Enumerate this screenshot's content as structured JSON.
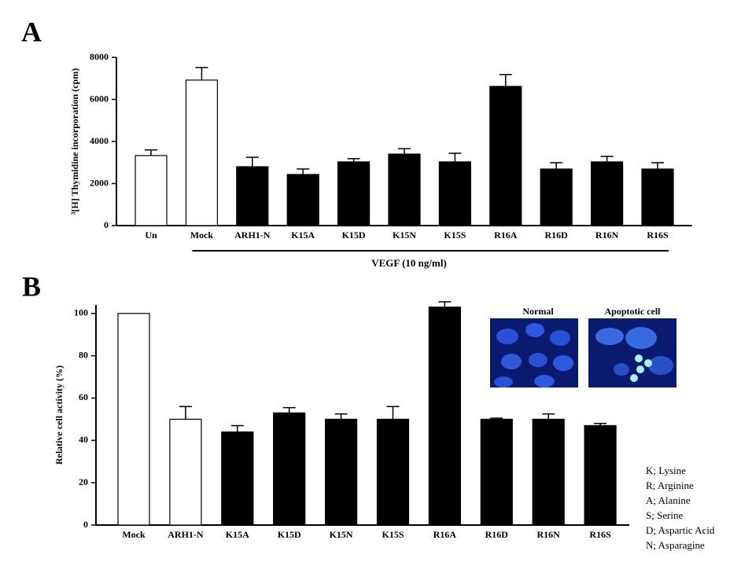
{
  "chart_data": [
    {
      "type": "bar",
      "panel_label": "A",
      "ylabel": "³[H] Thymidine incorporation (cpm)",
      "categories": [
        "Un",
        "Mock",
        "ARH1-N",
        "K15A",
        "K15D",
        "K15N",
        "K15S",
        "R16A",
        "R16D",
        "R16N",
        "R16S"
      ],
      "values": [
        3330,
        6920,
        2800,
        2430,
        3030,
        3400,
        3030,
        6620,
        2690,
        3030,
        2690
      ],
      "errors": [
        270,
        600,
        450,
        260,
        150,
        260,
        410,
        560,
        300,
        260,
        300
      ],
      "colors": [
        "#ffffff",
        "#ffffff",
        "#000000",
        "#000000",
        "#000000",
        "#000000",
        "#000000",
        "#000000",
        "#000000",
        "#000000",
        "#000000"
      ],
      "ylim": [
        0,
        8000
      ],
      "yticks": [
        0,
        2000,
        4000,
        6000,
        8000
      ],
      "group_label": "VEGF (10 ng/ml)"
    },
    {
      "type": "bar",
      "panel_label": "B",
      "ylabel": "Relative cell activity (%)",
      "categories": [
        "Mock",
        "ARH1-N",
        "K15A",
        "K15D",
        "K15N",
        "K15S",
        "R16A",
        "R16D",
        "R16N",
        "R16S"
      ],
      "values": [
        100,
        50,
        44,
        53,
        50,
        50,
        103,
        50,
        50,
        47
      ],
      "errors": [
        0,
        6,
        3,
        2.5,
        2.5,
        6,
        2.5,
        0.5,
        2.5,
        1
      ],
      "colors": [
        "#ffffff",
        "#ffffff",
        "#000000",
        "#000000",
        "#000000",
        "#000000",
        "#000000",
        "#000000",
        "#000000",
        "#000000"
      ],
      "ylim": [
        0,
        104
      ],
      "yticks": [
        0,
        20,
        40,
        60,
        80,
        100
      ],
      "insets": [
        "Normal",
        "Apoptotic cell"
      ],
      "notes": [
        "K; Lysine",
        "R; Arginine",
        "A; Alanine",
        "S; Serine",
        "D; Aspartic Acid",
        "N; Asparagine"
      ]
    }
  ]
}
